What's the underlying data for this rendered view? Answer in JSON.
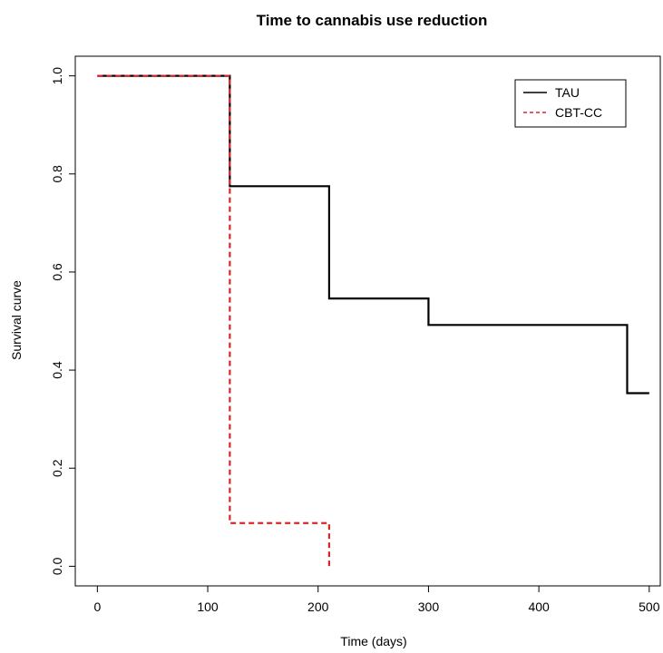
{
  "chart_data": {
    "type": "line",
    "title": "Time to cannabis use reduction",
    "xlabel": "Time (days)",
    "ylabel": "Survival curve",
    "xlim": [
      -20,
      510
    ],
    "ylim": [
      -0.04,
      1.04
    ],
    "xticks": [
      0,
      100,
      200,
      300,
      400,
      500
    ],
    "yticks": [
      0.0,
      0.2,
      0.4,
      0.6,
      0.8,
      1.0
    ],
    "xtick_labels": [
      "0",
      "100",
      "200",
      "300",
      "400",
      "500"
    ],
    "ytick_labels": [
      "0.0",
      "0.2",
      "0.4",
      "0.6",
      "0.8",
      "1.0"
    ],
    "step": true,
    "grid": false,
    "legend_position": "top-right",
    "series": [
      {
        "name": "TAU",
        "color": "#000000",
        "line_style": "solid",
        "x": [
          0,
          120,
          210,
          300,
          480,
          500
        ],
        "y": [
          1.0,
          0.775,
          0.546,
          0.492,
          0.353,
          0.353
        ]
      },
      {
        "name": "CBT-CC",
        "color": "#d62728",
        "line_style": "dashed",
        "x": [
          0,
          120,
          210
        ],
        "y": [
          1.0,
          0.088,
          0.0
        ]
      }
    ]
  }
}
